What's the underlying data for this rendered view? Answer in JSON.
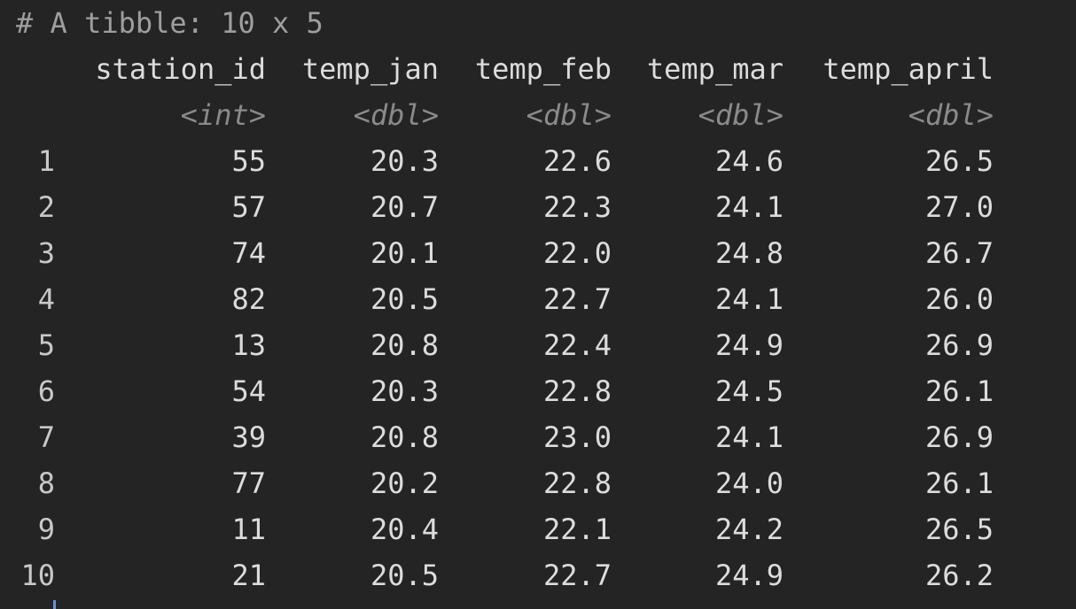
{
  "console": {
    "summary": "# A tibble: 10 x 5",
    "columns": [
      {
        "name": "station_id",
        "type": "<int>"
      },
      {
        "name": "temp_jan",
        "type": "<dbl>"
      },
      {
        "name": "temp_feb",
        "type": "<dbl>"
      },
      {
        "name": "temp_mar",
        "type": "<dbl>"
      },
      {
        "name": "temp_april",
        "type": "<dbl>"
      }
    ],
    "rows": [
      {
        "n": "1",
        "cells": [
          "55",
          "20.3",
          "22.6",
          "24.6",
          "26.5"
        ]
      },
      {
        "n": "2",
        "cells": [
          "57",
          "20.7",
          "22.3",
          "24.1",
          "27.0"
        ]
      },
      {
        "n": "3",
        "cells": [
          "74",
          "20.1",
          "22.0",
          "24.8",
          "26.7"
        ]
      },
      {
        "n": "4",
        "cells": [
          "82",
          "20.5",
          "22.7",
          "24.1",
          "26.0"
        ]
      },
      {
        "n": "5",
        "cells": [
          "13",
          "20.8",
          "22.4",
          "24.9",
          "26.9"
        ]
      },
      {
        "n": "6",
        "cells": [
          "54",
          "20.3",
          "22.8",
          "24.5",
          "26.1"
        ]
      },
      {
        "n": "7",
        "cells": [
          "39",
          "20.8",
          "23.0",
          "24.1",
          "26.9"
        ]
      },
      {
        "n": "8",
        "cells": [
          "77",
          "20.2",
          "22.8",
          "24.0",
          "26.1"
        ]
      },
      {
        "n": "9",
        "cells": [
          "11",
          "20.4",
          "22.1",
          "24.2",
          "26.5"
        ]
      },
      {
        "n": "10",
        "cells": [
          "21",
          "20.5",
          "22.7",
          "24.9",
          "26.2"
        ]
      }
    ]
  },
  "colors": {
    "background": "#242424",
    "text": "#dcdcdc",
    "comment": "#9e9e9e",
    "type_annotation": "#8a8a8a",
    "cursor": "#6f8fd8"
  }
}
